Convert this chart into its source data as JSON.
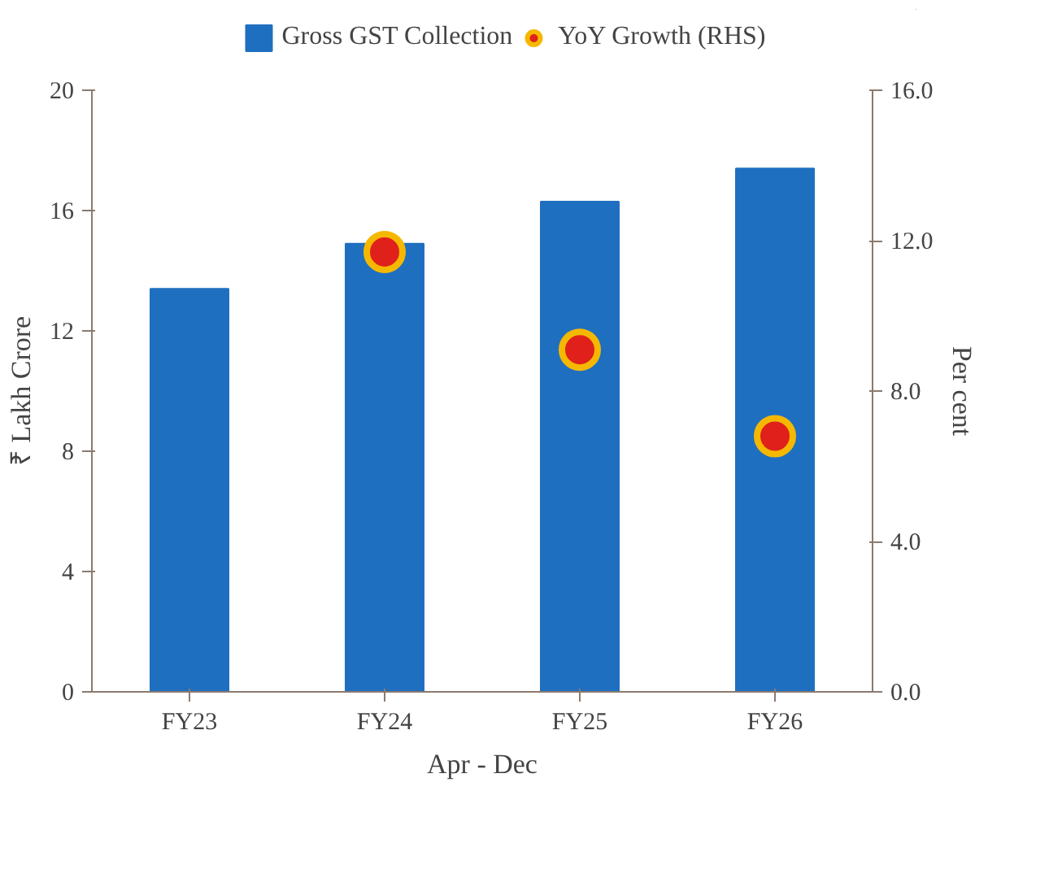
{
  "chart_data": {
    "type": "bar",
    "categories": [
      "FY23",
      "FY24",
      "FY25",
      "FY26"
    ],
    "series": [
      {
        "name": "Gross GST Collection",
        "color": "#1f6fc0",
        "values": [
          13.4,
          14.9,
          16.3,
          17.4
        ]
      },
      {
        "name": "YoY Growth (RHS)",
        "type": "scatter",
        "axis": "y2",
        "color": "#e0201b",
        "values": [
          null,
          11.7,
          9.1,
          6.8
        ]
      }
    ],
    "xlabel": "Apr - Dec",
    "ylabel": "₹ Lakh Crore",
    "y2label": "Per cent",
    "ylim": [
      0,
      20
    ],
    "yticks": [
      0,
      4,
      8,
      12,
      16,
      20
    ],
    "y2lim": [
      0,
      16
    ],
    "y2ticks": [
      {
        "value": 0,
        "label": "0.0"
      },
      {
        "value": 4,
        "label": "4.0"
      },
      {
        "value": 8,
        "label": "8.0"
      },
      {
        "value": 12,
        "label": "12.0"
      },
      {
        "value": 16,
        "label": "16.0"
      }
    ],
    "legend": "top",
    "marker": "circle",
    "grid": false
  }
}
